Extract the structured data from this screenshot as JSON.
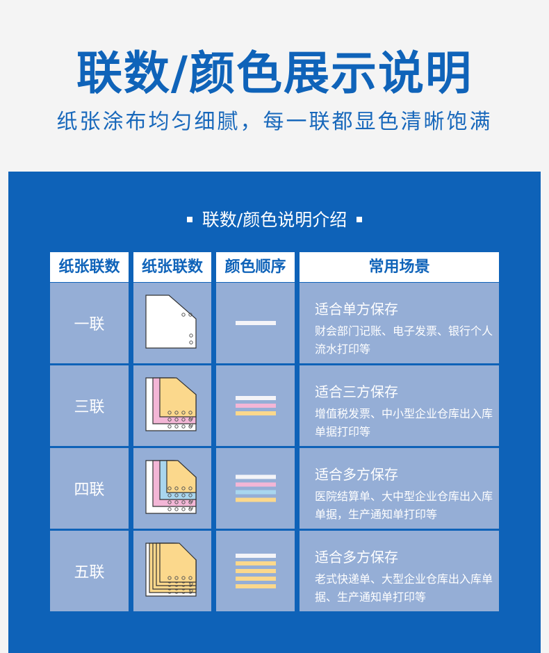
{
  "title": "联数/颜色展示说明",
  "subtitle": "纸张涂布均匀细腻，每一联都显色清晰饱满",
  "section_title": "联数/颜色说明介绍",
  "headers": [
    "纸张联数",
    "纸张联数",
    "颜色顺序",
    "常用场景"
  ],
  "rows": [
    {
      "label": "一联",
      "colors": [
        "#f4f4f8"
      ],
      "scene_title": "适合单方保存",
      "scene_text": "财会部门记账、电子发票、银行个人流水打印等"
    },
    {
      "label": "三联",
      "colors": [
        "#f4f4f8",
        "#f3b6d6",
        "#fbd88c"
      ],
      "scene_title": "适合三方保存",
      "scene_text": "增值税发票、中小型企业仓库出入库单据打印等"
    },
    {
      "label": "四联",
      "colors": [
        "#f4f4f8",
        "#f3b6d6",
        "#a9d6ee",
        "#fbd88c"
      ],
      "scene_title": "适合多方保存",
      "scene_text": "医院结算单、大中型企业仓库出入库单据，生产通知单打印等"
    },
    {
      "label": "五联",
      "colors": [
        "#f4f4f8",
        "#fbd88c",
        "#fbd88c",
        "#fbd88c",
        "#fbd88c"
      ],
      "scene_title": "适合多方保存",
      "scene_text": "老式快递单、大型企业仓库出入库单据、生产通知单打印等"
    }
  ]
}
